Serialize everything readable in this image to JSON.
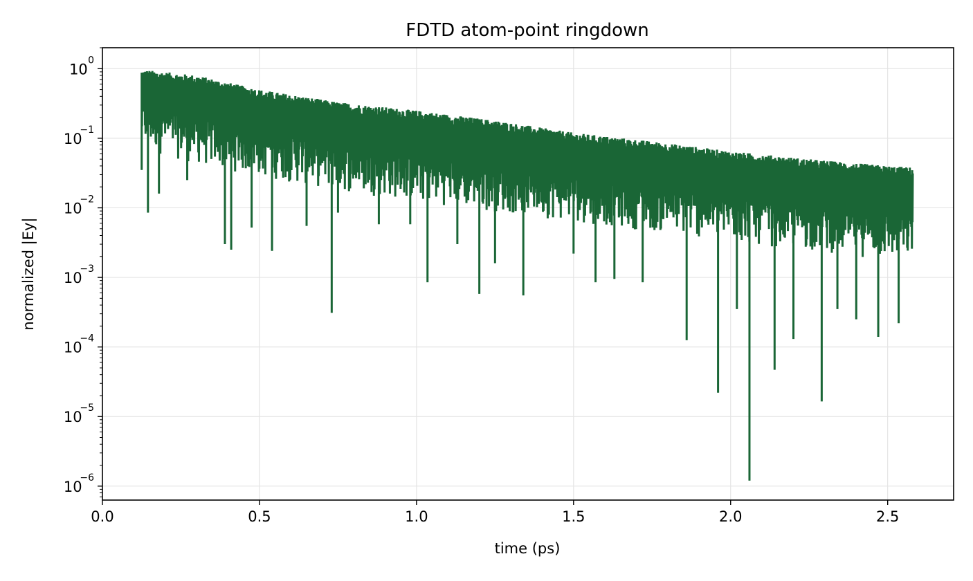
{
  "chart_data": {
    "type": "line",
    "title": "FDTD atom-point ringdown",
    "xlabel": "time (ps)",
    "ylabel": "normalized |Ey|",
    "xlim": [
      0.0,
      2.71
    ],
    "ylim": [
      6.3e-07,
      2.0
    ],
    "yscale": "log",
    "grid": true,
    "legend": "none",
    "x_ticks": [
      {
        "value": 0.0,
        "label": "0.0"
      },
      {
        "value": 0.5,
        "label": "0.5"
      },
      {
        "value": 1.0,
        "label": "1.0"
      },
      {
        "value": 1.5,
        "label": "1.5"
      },
      {
        "value": 2.0,
        "label": "2.0"
      },
      {
        "value": 2.5,
        "label": "2.5"
      }
    ],
    "y_ticks": [
      {
        "value": 1,
        "base": "10",
        "exp": "0"
      },
      {
        "value": 0.1,
        "base": "10",
        "exp": "−1"
      },
      {
        "value": 0.01,
        "base": "10",
        "exp": "−2"
      },
      {
        "value": 0.001,
        "base": "10",
        "exp": "−3"
      },
      {
        "value": 0.0001,
        "base": "10",
        "exp": "−4"
      },
      {
        "value": 1e-05,
        "base": "10",
        "exp": "−5"
      },
      {
        "value": 1e-06,
        "base": "10",
        "exp": "−6"
      }
    ],
    "series": [
      {
        "color": "#1a6636",
        "envelope_x": [
          0.125,
          0.3,
          0.5,
          0.75,
          1.0,
          1.25,
          1.5,
          1.75,
          2.0,
          2.25,
          2.5,
          2.58
        ],
        "envelope_upper": [
          0.97,
          0.8,
          0.5,
          0.33,
          0.25,
          0.18,
          0.12,
          0.09,
          0.065,
          0.05,
          0.04,
          0.038
        ],
        "envelope_lower": [
          0.2,
          0.12,
          0.08,
          0.05,
          0.035,
          0.025,
          0.018,
          0.013,
          0.009,
          0.007,
          0.005,
          0.005
        ],
        "dips": [
          {
            "x": 0.125,
            "y": 0.035
          },
          {
            "x": 0.145,
            "y": 0.0085
          },
          {
            "x": 0.18,
            "y": 0.016
          },
          {
            "x": 0.27,
            "y": 0.025
          },
          {
            "x": 0.39,
            "y": 0.003
          },
          {
            "x": 0.41,
            "y": 0.0025
          },
          {
            "x": 0.475,
            "y": 0.0052
          },
          {
            "x": 0.54,
            "y": 0.0024
          },
          {
            "x": 0.65,
            "y": 0.0055
          },
          {
            "x": 0.73,
            "y": 0.00031
          },
          {
            "x": 0.75,
            "y": 0.0085
          },
          {
            "x": 0.88,
            "y": 0.0058
          },
          {
            "x": 0.98,
            "y": 0.0058
          },
          {
            "x": 1.035,
            "y": 0.00085
          },
          {
            "x": 1.13,
            "y": 0.003
          },
          {
            "x": 1.2,
            "y": 0.00058
          },
          {
            "x": 1.25,
            "y": 0.0016
          },
          {
            "x": 1.34,
            "y": 0.00055
          },
          {
            "x": 1.5,
            "y": 0.0022
          },
          {
            "x": 1.57,
            "y": 0.00085
          },
          {
            "x": 1.63,
            "y": 0.00095
          },
          {
            "x": 1.72,
            "y": 0.00085
          },
          {
            "x": 1.86,
            "y": 0.000125
          },
          {
            "x": 1.96,
            "y": 2.2e-05
          },
          {
            "x": 2.02,
            "y": 0.00035
          },
          {
            "x": 2.06,
            "y": 1.2e-06
          },
          {
            "x": 2.14,
            "y": 4.7e-05
          },
          {
            "x": 2.2,
            "y": 0.00013
          },
          {
            "x": 2.29,
            "y": 1.65e-05
          },
          {
            "x": 2.34,
            "y": 0.00035
          },
          {
            "x": 2.4,
            "y": 0.00025
          },
          {
            "x": 2.47,
            "y": 0.00014
          },
          {
            "x": 2.535,
            "y": 0.00022
          }
        ]
      }
    ]
  }
}
